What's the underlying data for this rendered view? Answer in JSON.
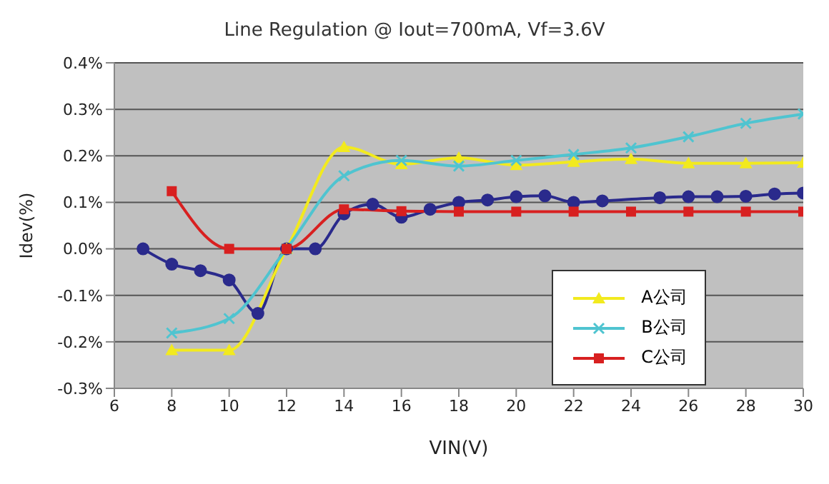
{
  "chart_data": {
    "type": "line",
    "title": "Line Regulation @ Iout=700mA, Vf=3.6V",
    "xlabel": "VIN(V)",
    "ylabel": "Idev(%)",
    "xlim": [
      6,
      30
    ],
    "xticks": [
      6,
      8,
      10,
      12,
      14,
      16,
      18,
      20,
      22,
      24,
      26,
      28,
      30
    ],
    "ylim": [
      -0.3,
      0.4
    ],
    "yticks": [
      {
        "value": -0.3,
        "label": "-0.3%"
      },
      {
        "value": -0.2,
        "label": "-0.2%"
      },
      {
        "value": -0.1,
        "label": "-0.1%"
      },
      {
        "value": 0,
        "label": "0.0%"
      },
      {
        "value": 0.1,
        "label": "0.1%"
      },
      {
        "value": 0.2,
        "label": "0.2%"
      },
      {
        "value": 0.3,
        "label": "0.3%"
      },
      {
        "value": 0.4,
        "label": "0.4%"
      }
    ],
    "grid": "y",
    "legend": "bottom right",
    "line_style": "solid",
    "series": [
      {
        "color": "#2a2a8c",
        "marker": "circle",
        "x": [
          7,
          8,
          9,
          10,
          11,
          12,
          13,
          14,
          15,
          16,
          17,
          18,
          19,
          20,
          21,
          22,
          23,
          25,
          26,
          27,
          28,
          29,
          30
        ],
        "values": [
          0,
          -0.033,
          -0.047,
          -0.067,
          -0.139,
          0,
          0,
          0.075,
          0.096,
          0.068,
          0.085,
          0.1,
          0.105,
          0.112,
          0.114,
          0.1,
          0.103,
          0.11,
          0.112,
          0.112,
          0.113,
          0.118,
          0.12
        ]
      },
      {
        "name": "A公司",
        "color": "#f2ea1e",
        "marker": "triangle",
        "x": [
          8,
          10,
          12,
          14,
          16,
          18,
          20,
          22,
          24,
          26,
          28,
          30
        ],
        "values": [
          -0.218,
          -0.218,
          0,
          0.219,
          0.182,
          0.196,
          0.18,
          0.187,
          0.193,
          0.184,
          0.184,
          0.185
        ]
      },
      {
        "name": "B公司",
        "color": "#4fc4d0",
        "marker": "cross",
        "x": [
          8,
          10,
          12,
          14,
          16,
          18,
          20,
          22,
          24,
          26,
          28,
          30
        ],
        "values": [
          -0.181,
          -0.15,
          0,
          0.157,
          0.19,
          0.178,
          0.19,
          0.203,
          0.217,
          0.241,
          0.27,
          0.29
        ]
      },
      {
        "name": "C公司",
        "color": "#d82020",
        "marker": "square",
        "x": [
          8,
          10,
          12,
          14,
          16,
          18,
          20,
          22,
          24,
          26,
          28,
          30
        ],
        "values": [
          0.124,
          0,
          0,
          0.085,
          0.081,
          0.08,
          0.08,
          0.08,
          0.08,
          0.08,
          0.08,
          0.08
        ]
      }
    ]
  }
}
